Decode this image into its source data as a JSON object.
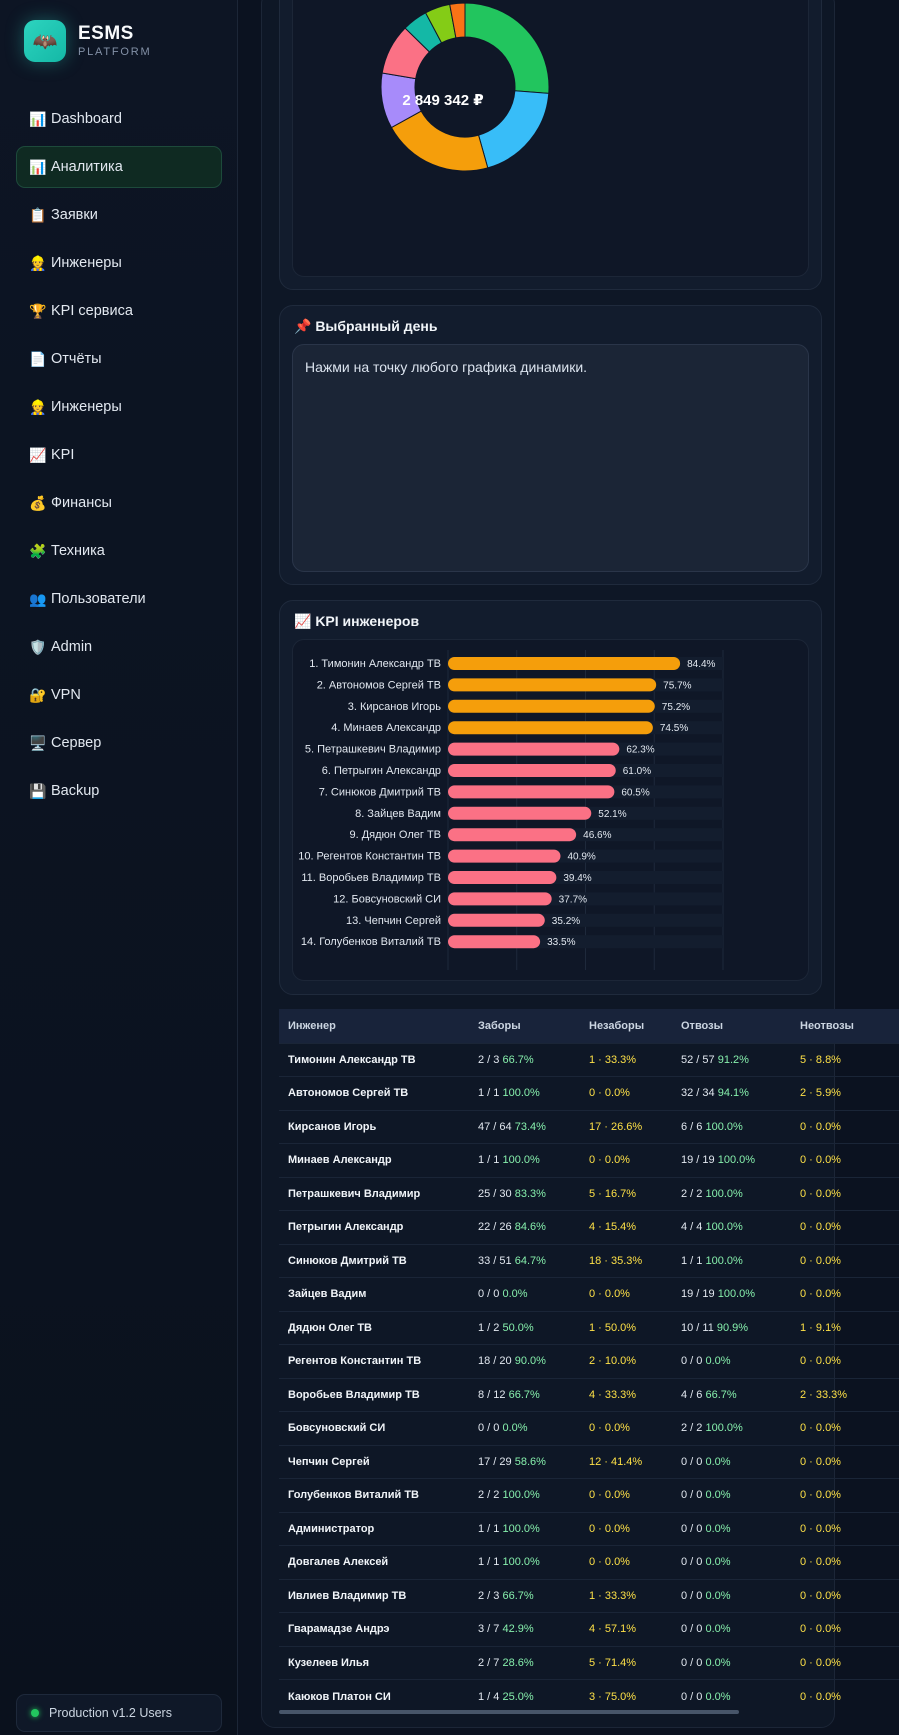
{
  "brand": {
    "name": "ESMS",
    "subtitle": "PLATFORM",
    "logo_icon": "bat-icon"
  },
  "nav": [
    {
      "icon": "📊",
      "label": "Dashboard",
      "active": false
    },
    {
      "icon": "📊",
      "label": "Аналитика",
      "active": true
    },
    {
      "icon": "📋",
      "label": "Заявки",
      "active": false
    },
    {
      "icon": "👷",
      "label": "Инженеры",
      "active": false
    },
    {
      "icon": "🏆",
      "label": "KPI сервиса",
      "active": false
    },
    {
      "icon": "📄",
      "label": "Отчёты",
      "active": false
    },
    {
      "icon": "👷",
      "label": "Инженеры",
      "active": false
    },
    {
      "icon": "📈",
      "label": "KPI",
      "active": false
    },
    {
      "icon": "💰",
      "label": "Финансы",
      "active": false
    },
    {
      "icon": "🧩",
      "label": "Техника",
      "active": false
    },
    {
      "icon": "👥",
      "label": "Пользователи",
      "active": false
    },
    {
      "icon": "🛡️",
      "label": "Admin",
      "active": false
    },
    {
      "icon": "🔐",
      "label": "VPN",
      "active": false
    },
    {
      "icon": "🖥️",
      "label": "Сервер",
      "active": false
    },
    {
      "icon": "💾",
      "label": "Backup",
      "active": false
    }
  ],
  "status": {
    "text": "Production v1.2 Users",
    "color": "#22c55e"
  },
  "donut": {
    "center_label": "2 849 342 ₽",
    "chart_data": {
      "type": "pie",
      "slices": [
        {
          "value": 27,
          "color": "#22c55e"
        },
        {
          "value": 20,
          "color": "#38bdf8"
        },
        {
          "value": 22,
          "color": "#f59e0b"
        },
        {
          "value": 11,
          "color": "#a78bfa"
        },
        {
          "value": 10,
          "color": "#fb7185"
        },
        {
          "value": 5,
          "color": "#14b8a6"
        },
        {
          "value": 5,
          "color": "#84cc16"
        },
        {
          "value": 3,
          "color": "#f97316"
        }
      ]
    }
  },
  "selected_day": {
    "title": "📌 Выбранный день",
    "text": "Нажми на точку любого графика динамики."
  },
  "kpi": {
    "title": "📈 KPI инженеров",
    "chart_data": {
      "type": "bar",
      "orientation": "horizontal",
      "categories": [
        "1. Тимонин Александр ТВ",
        "2. Автономов Сергей ТВ",
        "3. Кирсанов Игорь",
        "4. Минаев Александр",
        "5. Петрашкевич Владимир",
        "6. Петрыгин Александр",
        "7. Синюков Дмитрий ТВ",
        "8. Зайцев Вадим",
        "9. Дядюн Олег ТВ",
        "10. Регентов Константин ТВ",
        "11. Воробьев Владимир ТВ",
        "12. Бовсуновский СИ",
        "13. Чепчин Сергей",
        "14. Голубенков Виталий ТВ"
      ],
      "values": [
        84.4,
        75.7,
        75.2,
        74.5,
        62.3,
        61.0,
        60.5,
        52.1,
        46.6,
        40.9,
        39.4,
        37.7,
        35.2,
        33.5
      ],
      "value_labels": [
        "84.4%",
        "75.7%",
        "75.2%",
        "74.5%",
        "62.3%",
        "61.0%",
        "60.5%",
        "52.1%",
        "46.6%",
        "40.9%",
        "39.4%",
        "37.7%",
        "35.2%",
        "33.5%"
      ],
      "colors": [
        "#f59e0b",
        "#f59e0b",
        "#f59e0b",
        "#f59e0b",
        "#fb7185",
        "#fb7185",
        "#fb7185",
        "#fb7185",
        "#fb7185",
        "#fb7185",
        "#fb7185",
        "#fb7185",
        "#fb7185",
        "#fb7185"
      ],
      "xlim": [
        0,
        100
      ]
    }
  },
  "table": {
    "headers": [
      "Инженер",
      "Заборы",
      "Незаборы",
      "Отвозы",
      "Неотвозы"
    ],
    "rows": [
      [
        "Тимонин Александр ТВ",
        "2 / 3",
        "66.7%",
        "1 · 33.3%",
        "52 / 57",
        "91.2%",
        "5 · 8.8%"
      ],
      [
        "Автономов Сергей ТВ",
        "1 / 1",
        "100.0%",
        "0 · 0.0%",
        "32 / 34",
        "94.1%",
        "2 · 5.9%"
      ],
      [
        "Кирсанов Игорь",
        "47 / 64",
        "73.4%",
        "17 · 26.6%",
        "6 / 6",
        "100.0%",
        "0 · 0.0%"
      ],
      [
        "Минаев Александр",
        "1 / 1",
        "100.0%",
        "0 · 0.0%",
        "19 / 19",
        "100.0%",
        "0 · 0.0%"
      ],
      [
        "Петрашкевич Владимир",
        "25 / 30",
        "83.3%",
        "5 · 16.7%",
        "2 / 2",
        "100.0%",
        "0 · 0.0%"
      ],
      [
        "Петрыгин Александр",
        "22 / 26",
        "84.6%",
        "4 · 15.4%",
        "4 / 4",
        "100.0%",
        "0 · 0.0%"
      ],
      [
        "Синюков Дмитрий ТВ",
        "33 / 51",
        "64.7%",
        "18 · 35.3%",
        "1 / 1",
        "100.0%",
        "0 · 0.0%"
      ],
      [
        "Зайцев Вадим",
        "0 / 0",
        "0.0%",
        "0 · 0.0%",
        "19 / 19",
        "100.0%",
        "0 · 0.0%"
      ],
      [
        "Дядюн Олег ТВ",
        "1 / 2",
        "50.0%",
        "1 · 50.0%",
        "10 / 11",
        "90.9%",
        "1 · 9.1%"
      ],
      [
        "Регентов Константин ТВ",
        "18 / 20",
        "90.0%",
        "2 · 10.0%",
        "0 / 0",
        "0.0%",
        "0 · 0.0%"
      ],
      [
        "Воробьев Владимир ТВ",
        "8 / 12",
        "66.7%",
        "4 · 33.3%",
        "4 / 6",
        "66.7%",
        "2 · 33.3%"
      ],
      [
        "Бовсуновский СИ",
        "0 / 0",
        "0.0%",
        "0 · 0.0%",
        "2 / 2",
        "100.0%",
        "0 · 0.0%"
      ],
      [
        "Чепчин Сергей",
        "17 / 29",
        "58.6%",
        "12 · 41.4%",
        "0 / 0",
        "0.0%",
        "0 · 0.0%"
      ],
      [
        "Голубенков Виталий ТВ",
        "2 / 2",
        "100.0%",
        "0 · 0.0%",
        "0 / 0",
        "0.0%",
        "0 · 0.0%"
      ],
      [
        "Администратор",
        "1 / 1",
        "100.0%",
        "0 · 0.0%",
        "0 / 0",
        "0.0%",
        "0 · 0.0%"
      ],
      [
        "Довгалев Алексей",
        "1 / 1",
        "100.0%",
        "0 · 0.0%",
        "0 / 0",
        "0.0%",
        "0 · 0.0%"
      ],
      [
        "Ивлиев Владимир ТВ",
        "2 / 3",
        "66.7%",
        "1 · 33.3%",
        "0 / 0",
        "0.0%",
        "0 · 0.0%"
      ],
      [
        "Гварамадзе Андрэ",
        "3 / 7",
        "42.9%",
        "4 · 57.1%",
        "0 / 0",
        "0.0%",
        "0 · 0.0%"
      ],
      [
        "Кузелеев Илья",
        "2 / 7",
        "28.6%",
        "5 · 71.4%",
        "0 / 0",
        "0.0%",
        "0 · 0.0%"
      ],
      [
        "Каюков Платон СИ",
        "1 / 4",
        "25.0%",
        "3 · 75.0%",
        "0 / 0",
        "0.0%",
        "0 · 0.0%"
      ]
    ]
  }
}
